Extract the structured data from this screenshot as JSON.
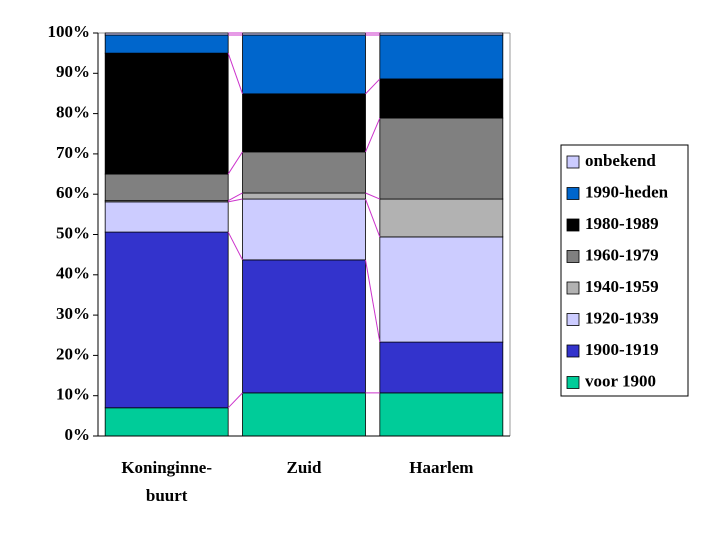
{
  "chart_data": {
    "type": "stacked_bar_100",
    "categories": [
      "Koninginne-buurt",
      "Zuid",
      "Haarlem"
    ],
    "series": [
      {
        "name": "voor 1900",
        "color": "#00cc99",
        "values": [
          7,
          10.7,
          10.7
        ]
      },
      {
        "name": "1900-1919",
        "color": "#3333cc",
        "values": [
          43.6,
          33,
          12.6
        ]
      },
      {
        "name": "1920-1939",
        "color": "#ccccff",
        "values": [
          7.5,
          15.1,
          26.1
        ]
      },
      {
        "name": "1940-1959",
        "color": "#b2b2b2",
        "values": [
          0.3,
          1.5,
          9.4
        ]
      },
      {
        "name": "1960-1979",
        "color": "#808080",
        "values": [
          6.6,
          10.2,
          20.1
        ]
      },
      {
        "name": "1980-1989",
        "color": "#000000",
        "values": [
          30,
          14.4,
          9.7
        ]
      },
      {
        "name": "1990-heden",
        "color": "#0066cc",
        "values": [
          4.5,
          14.6,
          10.9
        ]
      },
      {
        "name": "onbekend",
        "color": "#ccccff",
        "values": [
          0.5,
          0.5,
          0.5
        ]
      }
    ],
    "ylim": [
      0,
      100
    ],
    "yticks": [
      {
        "value": 0,
        "label": "0%"
      },
      {
        "value": 10,
        "label": "10%"
      },
      {
        "value": 20,
        "label": "20%"
      },
      {
        "value": 30,
        "label": "30%"
      },
      {
        "value": 40,
        "label": "40%"
      },
      {
        "value": 50,
        "label": "50%"
      },
      {
        "value": 60,
        "label": "60%"
      },
      {
        "value": 70,
        "label": "70%"
      },
      {
        "value": 80,
        "label": "80%"
      },
      {
        "value": 90,
        "label": "90%"
      },
      {
        "value": 100,
        "label": "100%"
      }
    ],
    "legend": "right"
  }
}
